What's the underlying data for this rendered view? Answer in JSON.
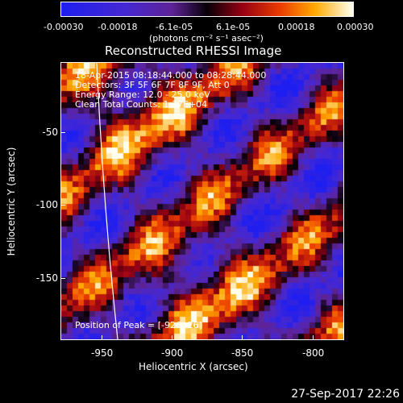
{
  "colorbar": {
    "ticks": [
      "-0.00030",
      "-0.00018",
      "-6.1e-05",
      "6.1e-05",
      "0.00018",
      "0.00030"
    ],
    "units": "(photons cm⁻² s⁻¹ asec⁻²)"
  },
  "plot": {
    "title": "Reconstructed RHESSI Image",
    "info": [
      "18-Apr-2015 08:18:44.000 to 08:28:44.000",
      "Detectors: 3F 5F 6F 7F 8F 9F, Att 0",
      "Energy Range: 12.0 - 25.0 keV",
      "Clean     Total Counts: 1.37E+04"
    ],
    "peak": "Position of Peak = [-926,-26]",
    "xlabel": "Heliocentric X (arcsec)",
    "ylabel": "Heliocentric Y (arcsec)",
    "xticks": [
      "-950",
      "-900",
      "-850",
      "-800"
    ],
    "yticks": [
      "-50",
      "-100",
      "-150"
    ]
  },
  "timestamp": "27-Sep-2017 22:26"
}
